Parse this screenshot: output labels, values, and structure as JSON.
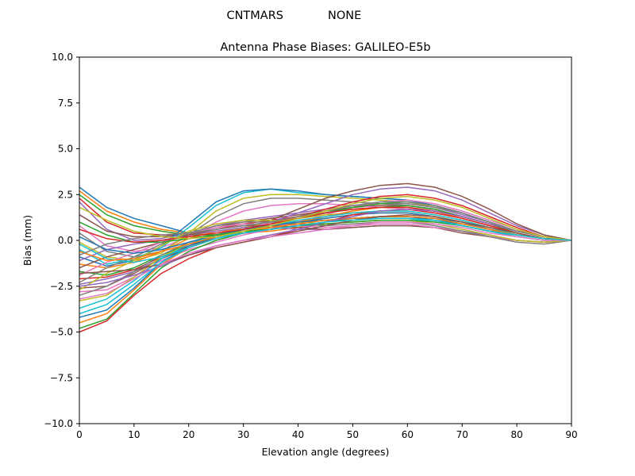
{
  "figure": {
    "suptitle_left": "CNTMARS",
    "suptitle_right": "NONE"
  },
  "chart_data": {
    "type": "line",
    "title": "Antenna Phase Biases: GALILEO-E5b",
    "xlabel": "Elevation angle (degrees)",
    "ylabel": "Bias (mm)",
    "xlim": [
      0,
      90
    ],
    "ylim": [
      -10,
      10
    ],
    "xticks": [
      0,
      10,
      20,
      30,
      40,
      50,
      60,
      70,
      80,
      90
    ],
    "xtick_labels": [
      "0",
      "10",
      "20",
      "30",
      "40",
      "50",
      "60",
      "70",
      "80",
      "90"
    ],
    "yticks": [
      -10,
      -7.5,
      -5,
      -2.5,
      0,
      2.5,
      5,
      7.5,
      10
    ],
    "ytick_labels": [
      "−10.0",
      "−7.5",
      "−5.0",
      "−2.5",
      "0.0",
      "2.5",
      "5.0",
      "7.5",
      "10.0"
    ],
    "grid": false,
    "legend": "none",
    "colors": [
      "#1f77b4",
      "#ff7f0e",
      "#2ca02c",
      "#d62728",
      "#9467bd",
      "#8c564b",
      "#e377c2",
      "#7f7f7f",
      "#bcbd22",
      "#17becf"
    ],
    "x": [
      0,
      5,
      10,
      15,
      20,
      25,
      30,
      35,
      40,
      45,
      50,
      55,
      60,
      65,
      70,
      75,
      80,
      85,
      90
    ],
    "series": [
      {
        "values": [
          2.9,
          1.8,
          1.2,
          0.8,
          0.4,
          0.3,
          0.4,
          0.6,
          0.8,
          1.0,
          1.2,
          1.3,
          1.3,
          1.2,
          1.0,
          0.6,
          0.3,
          0.1,
          0.0
        ]
      },
      {
        "values": [
          2.7,
          1.6,
          1.0,
          0.6,
          0.4,
          0.3,
          0.4,
          0.5,
          0.7,
          0.9,
          1.0,
          1.1,
          1.1,
          1.0,
          0.8,
          0.5,
          0.3,
          0.1,
          0.0
        ]
      },
      {
        "values": [
          2.5,
          1.4,
          0.8,
          0.5,
          0.3,
          0.3,
          0.4,
          0.6,
          0.8,
          1.0,
          1.2,
          1.3,
          1.3,
          1.2,
          0.9,
          0.6,
          0.3,
          0.1,
          0.0
        ]
      },
      {
        "values": [
          2.3,
          1.0,
          0.4,
          0.3,
          0.4,
          0.6,
          0.9,
          1.1,
          1.3,
          1.5,
          1.7,
          1.8,
          1.8,
          1.6,
          1.3,
          0.9,
          0.5,
          0.2,
          0.0
        ]
      },
      {
        "values": [
          2.1,
          0.6,
          0.0,
          0.1,
          0.4,
          0.8,
          1.1,
          1.3,
          1.5,
          1.7,
          1.9,
          2.0,
          2.0,
          1.8,
          1.4,
          1.0,
          0.5,
          0.2,
          0.0
        ]
      },
      {
        "values": [
          1.4,
          0.5,
          0.2,
          0.2,
          0.4,
          0.7,
          1.0,
          1.2,
          1.4,
          1.6,
          1.8,
          1.9,
          1.9,
          1.7,
          1.3,
          0.9,
          0.5,
          0.2,
          0.0
        ]
      },
      {
        "values": [
          0.8,
          -0.3,
          -0.6,
          -0.4,
          0.2,
          1.0,
          1.6,
          1.9,
          2.0,
          2.0,
          1.9,
          1.8,
          1.7,
          1.5,
          1.2,
          0.8,
          0.4,
          0.1,
          0.0
        ]
      },
      {
        "values": [
          0.4,
          -0.6,
          -0.9,
          -0.6,
          0.3,
          1.3,
          2.0,
          2.3,
          2.3,
          2.2,
          2.1,
          2.0,
          1.9,
          1.7,
          1.3,
          0.9,
          0.5,
          0.2,
          0.0
        ]
      },
      {
        "values": [
          -0.1,
          -0.9,
          -1.1,
          -0.7,
          0.4,
          1.6,
          2.3,
          2.5,
          2.5,
          2.4,
          2.3,
          2.2,
          2.1,
          1.8,
          1.5,
          1.0,
          0.5,
          0.2,
          0.0
        ]
      },
      {
        "values": [
          -0.5,
          -1.3,
          -1.0,
          -0.4,
          0.7,
          1.9,
          2.6,
          2.8,
          2.6,
          2.5,
          2.4,
          2.3,
          2.2,
          1.9,
          1.5,
          1.0,
          0.5,
          0.2,
          0.0
        ]
      },
      {
        "values": [
          -0.9,
          -1.4,
          -1.1,
          -0.3,
          0.9,
          2.1,
          2.7,
          2.8,
          2.7,
          2.5,
          2.4,
          2.3,
          2.2,
          1.9,
          1.5,
          1.0,
          0.5,
          0.2,
          0.0
        ]
      },
      {
        "values": [
          -1.3,
          -1.5,
          -1.2,
          -0.6,
          0.1,
          0.5,
          0.6,
          0.8,
          1.0,
          1.2,
          1.4,
          1.5,
          1.5,
          1.3,
          1.0,
          0.6,
          0.3,
          0.1,
          0.0
        ]
      },
      {
        "values": [
          -1.7,
          -1.9,
          -1.5,
          -0.8,
          -0.2,
          0.3,
          0.5,
          0.7,
          1.0,
          1.3,
          1.6,
          1.8,
          1.9,
          1.7,
          1.3,
          0.9,
          0.4,
          0.1,
          0.0
        ]
      },
      {
        "values": [
          -2.1,
          -2.0,
          -1.6,
          -0.9,
          -0.3,
          0.3,
          0.6,
          0.9,
          1.3,
          1.7,
          2.1,
          2.4,
          2.5,
          2.3,
          1.9,
          1.3,
          0.7,
          0.2,
          0.0
        ]
      },
      {
        "values": [
          -2.4,
          -2.1,
          -1.7,
          -1.0,
          -0.4,
          0.2,
          0.6,
          1.0,
          1.5,
          2.0,
          2.5,
          2.8,
          2.9,
          2.7,
          2.2,
          1.5,
          0.8,
          0.3,
          0.0
        ]
      },
      {
        "values": [
          -2.6,
          -2.5,
          -1.8,
          -1.0,
          -0.4,
          0.2,
          0.6,
          1.1,
          1.7,
          2.3,
          2.7,
          3.0,
          3.1,
          2.9,
          2.4,
          1.7,
          0.9,
          0.3,
          0.0
        ]
      },
      {
        "values": [
          -2.8,
          -2.7,
          -2.0,
          -1.1,
          -0.5,
          -0.1,
          0.3,
          0.6,
          1.0,
          1.4,
          1.8,
          2.1,
          2.2,
          2.0,
          1.6,
          1.1,
          0.6,
          0.2,
          0.0
        ]
      },
      {
        "values": [
          -3.0,
          -2.5,
          -1.7,
          -0.8,
          -0.1,
          0.3,
          0.6,
          0.9,
          1.2,
          1.5,
          1.8,
          2.0,
          2.0,
          1.8,
          1.5,
          1.0,
          0.5,
          0.2,
          0.0
        ]
      },
      {
        "values": [
          -3.3,
          -3.0,
          -2.0,
          -0.9,
          -0.2,
          0.3,
          0.7,
          1.0,
          1.2,
          1.4,
          1.5,
          1.6,
          1.6,
          1.4,
          1.1,
          0.7,
          0.4,
          0.1,
          0.0
        ]
      },
      {
        "values": [
          -3.7,
          -3.2,
          -2.2,
          -1.0,
          -0.2,
          0.3,
          0.6,
          0.8,
          1.0,
          1.1,
          1.2,
          1.2,
          1.2,
          1.0,
          0.8,
          0.5,
          0.2,
          0.0,
          0.0
        ]
      },
      {
        "values": [
          -4.2,
          -3.8,
          -2.6,
          -1.2,
          -0.3,
          0.2,
          0.5,
          0.8,
          1.0,
          1.2,
          1.4,
          1.5,
          1.5,
          1.3,
          1.0,
          0.6,
          0.3,
          0.1,
          0.0
        ]
      },
      {
        "values": [
          -4.5,
          -4.0,
          -2.7,
          -1.3,
          -0.4,
          0.1,
          0.4,
          0.7,
          1.0,
          1.3,
          1.6,
          1.8,
          1.8,
          1.6,
          1.2,
          0.8,
          0.4,
          0.1,
          0.0
        ]
      },
      {
        "values": [
          -4.8,
          -4.3,
          -2.9,
          -1.5,
          -0.6,
          0.0,
          0.4,
          0.8,
          1.2,
          1.5,
          1.8,
          2.0,
          2.1,
          1.9,
          1.5,
          1.0,
          0.5,
          0.2,
          0.0
        ]
      },
      {
        "values": [
          -5.0,
          -4.4,
          -3.0,
          -1.8,
          -1.0,
          -0.4,
          -0.1,
          0.2,
          0.6,
          1.0,
          1.4,
          1.6,
          1.7,
          1.5,
          1.2,
          0.8,
          0.4,
          0.1,
          0.0
        ]
      },
      {
        "values": [
          -1.1,
          -0.5,
          -0.2,
          0.0,
          0.3,
          0.5,
          0.7,
          0.7,
          0.6,
          0.6,
          0.7,
          0.8,
          0.8,
          0.7,
          0.5,
          0.3,
          0.0,
          -0.1,
          0.0
        ]
      },
      {
        "values": [
          -1.5,
          -0.9,
          -0.5,
          -0.1,
          0.3,
          0.6,
          0.8,
          0.8,
          0.7,
          0.6,
          0.7,
          0.8,
          0.8,
          0.7,
          0.4,
          0.2,
          0.0,
          -0.1,
          0.0
        ]
      },
      {
        "values": [
          -1.9,
          -1.2,
          -0.7,
          -0.1,
          0.4,
          0.7,
          0.9,
          0.9,
          0.8,
          0.7,
          0.8,
          0.9,
          0.9,
          0.7,
          0.5,
          0.2,
          0.0,
          -0.1,
          0.0
        ]
      },
      {
        "values": [
          -2.3,
          -1.5,
          -0.9,
          -0.2,
          0.4,
          0.8,
          1.0,
          1.0,
          0.9,
          0.8,
          0.9,
          1.0,
          1.0,
          0.8,
          0.5,
          0.2,
          -0.1,
          -0.2,
          0.0
        ]
      },
      {
        "values": [
          -2.7,
          -1.8,
          -1.1,
          -0.3,
          0.5,
          0.9,
          1.1,
          1.1,
          1.0,
          0.9,
          1.0,
          1.1,
          1.1,
          0.9,
          0.6,
          0.3,
          0.0,
          -0.1,
          0.0
        ]
      },
      {
        "values": [
          -0.2,
          -1.0,
          -1.2,
          -0.9,
          -0.4,
          0.1,
          0.5,
          0.8,
          1.1,
          1.3,
          1.5,
          1.6,
          1.6,
          1.4,
          1.1,
          0.7,
          0.3,
          0.1,
          0.0
        ]
      },
      {
        "values": [
          0.2,
          -0.5,
          -0.7,
          -0.5,
          -0.1,
          0.3,
          0.6,
          0.8,
          1.0,
          1.1,
          1.2,
          1.3,
          1.3,
          1.1,
          0.9,
          0.6,
          0.3,
          0.1,
          0.0
        ]
      },
      {
        "values": [
          -0.6,
          -1.1,
          -1.0,
          -0.6,
          -0.2,
          0.2,
          0.5,
          0.7,
          0.9,
          1.1,
          1.2,
          1.3,
          1.3,
          1.2,
          0.9,
          0.6,
          0.3,
          0.1,
          0.0
        ]
      },
      {
        "values": [
          1.0,
          0.3,
          -0.1,
          -0.1,
          0.1,
          0.3,
          0.5,
          0.6,
          0.8,
          0.9,
          1.0,
          1.1,
          1.1,
          1.0,
          0.8,
          0.5,
          0.3,
          0.1,
          0.0
        ]
      },
      {
        "values": [
          0.6,
          0.1,
          -0.1,
          0.0,
          0.2,
          0.4,
          0.6,
          0.9,
          1.2,
          1.5,
          1.7,
          1.8,
          1.8,
          1.6,
          1.3,
          0.9,
          0.5,
          0.2,
          0.0
        ]
      },
      {
        "values": [
          -2.5,
          -2.3,
          -1.9,
          -1.4,
          -0.8,
          -0.3,
          0.0,
          0.3,
          0.6,
          1.0,
          1.3,
          1.6,
          1.7,
          1.6,
          1.3,
          0.9,
          0.5,
          0.2,
          0.0
        ]
      },
      {
        "values": [
          -1.8,
          -1.7,
          -1.6,
          -1.3,
          -0.8,
          -0.4,
          -0.1,
          0.2,
          0.5,
          0.8,
          1.1,
          1.3,
          1.4,
          1.3,
          1.0,
          0.7,
          0.4,
          0.1,
          0.0
        ]
      },
      {
        "values": [
          -3.2,
          -2.9,
          -2.1,
          -1.3,
          -0.7,
          -0.3,
          0.0,
          0.2,
          0.4,
          0.6,
          0.8,
          1.0,
          1.0,
          0.9,
          0.7,
          0.4,
          0.2,
          0.0,
          0.0
        ]
      },
      {
        "values": [
          -0.8,
          -0.2,
          0.1,
          0.3,
          0.4,
          0.6,
          0.8,
          1.0,
          1.3,
          1.6,
          1.9,
          2.1,
          2.1,
          1.9,
          1.5,
          1.0,
          0.5,
          0.2,
          0.0
        ]
      },
      {
        "values": [
          1.8,
          1.1,
          0.5,
          0.2,
          0.1,
          0.2,
          0.5,
          0.8,
          1.2,
          1.6,
          2.0,
          2.3,
          2.4,
          2.2,
          1.8,
          1.2,
          0.6,
          0.2,
          0.0
        ]
      },
      {
        "values": [
          -4.0,
          -3.5,
          -2.4,
          -1.2,
          -0.4,
          0.1,
          0.4,
          0.6,
          0.8,
          1.0,
          1.1,
          1.2,
          1.2,
          1.1,
          0.8,
          0.5,
          0.3,
          0.1,
          0.0
        ]
      }
    ]
  }
}
